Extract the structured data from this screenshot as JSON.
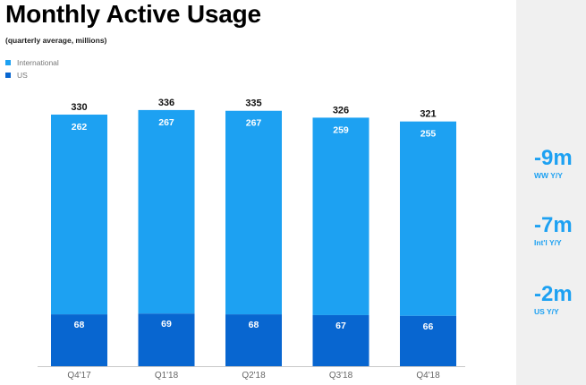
{
  "title": "Monthly Active Usage",
  "subtitle": "(quarterly average, millions)",
  "colors": {
    "international": "#1da1f2",
    "us": "#0866d0",
    "total_label": "#111111",
    "axis": "#c8c8c8",
    "tick_label": "#666666",
    "stat_accent": "#1da1f2",
    "side_panel": "#f0f0f0"
  },
  "legend": [
    {
      "label": "International",
      "color": "#1da1f2"
    },
    {
      "label": "US",
      "color": "#0866d0"
    }
  ],
  "chart_data": {
    "type": "bar",
    "stacked": true,
    "categories": [
      "Q4'17",
      "Q1'18",
      "Q2'18",
      "Q3'18",
      "Q4'18"
    ],
    "series": [
      {
        "name": "US",
        "values": [
          68,
          69,
          68,
          67,
          66
        ]
      },
      {
        "name": "International",
        "values": [
          262,
          267,
          267,
          259,
          255
        ]
      }
    ],
    "totals": [
      330,
      336,
      335,
      326,
      321
    ],
    "title": "Monthly Active Usage",
    "subtitle": "(quarterly average, millions)",
    "legend_position": "top-left",
    "grid": false
  },
  "stats": [
    {
      "value": "-9m",
      "label": "WW Y/Y"
    },
    {
      "value": "-7m",
      "label": "Int'l Y/Y"
    },
    {
      "value": "-2m",
      "label": "US Y/Y"
    }
  ]
}
